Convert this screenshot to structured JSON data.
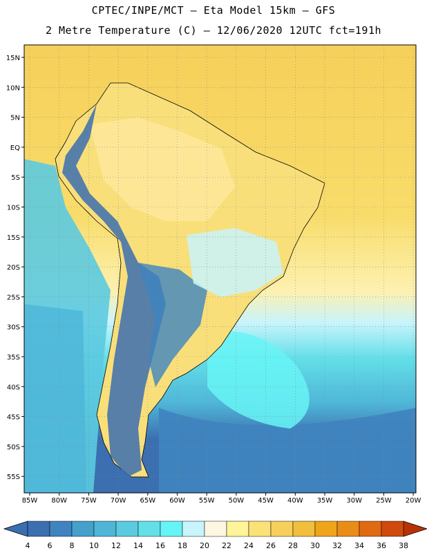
{
  "header": {
    "line1": "CPTEC/INPE/MCT –  Eta Model 15km – GFS",
    "line2": "2 Metre Temperature (C) – 12/06/2020 12UTC fct=191h"
  },
  "map": {
    "lat_labels": [
      "15N",
      "10N",
      "5N",
      "EQ",
      "5S",
      "10S",
      "15S",
      "20S",
      "25S",
      "30S",
      "35S",
      "40S",
      "45S",
      "50S",
      "55S"
    ],
    "lon_labels": [
      "85W",
      "80W",
      "75W",
      "70W",
      "65W",
      "60W",
      "55W",
      "50W",
      "45W",
      "40W",
      "35W",
      "30W",
      "25W",
      "20W"
    ]
  },
  "colorbar": {
    "labels": [
      "4",
      "6",
      "8",
      "10",
      "12",
      "14",
      "16",
      "18",
      "20",
      "22",
      "24",
      "26",
      "28",
      "30",
      "32",
      "34",
      "36",
      "38"
    ],
    "colors": [
      "#3b6fb0",
      "#3f84bf",
      "#45a0cc",
      "#4fb6d8",
      "#5ccae0",
      "#63dfe8",
      "#67f4f6",
      "#c8f4fc",
      "#fdf7e2",
      "#fef49a",
      "#fbe278",
      "#f6d05a",
      "#f1bf3e",
      "#eea51a",
      "#ea8c18",
      "#e06a12",
      "#cf4a0c",
      "#b83208"
    ]
  }
}
